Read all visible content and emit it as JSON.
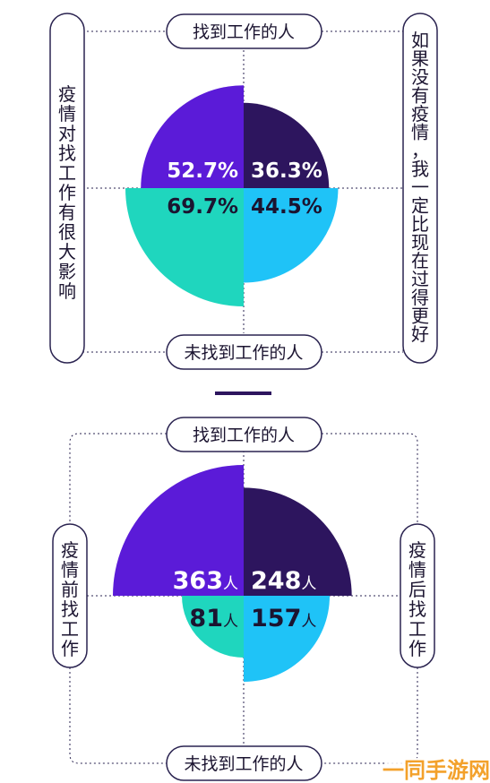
{
  "chart_data": [
    {
      "type": "pie",
      "labels": {
        "top": "找到工作的人",
        "bottom": "未找到工作的人",
        "left": "疫情对找工作有很大影响",
        "right": "如果没有疫情，我一定比现在过得更好"
      },
      "quadrants": [
        {
          "id": "top-left",
          "value": 52.7,
          "display": "52.7%",
          "color": "#5b1bd8"
        },
        {
          "id": "top-right",
          "value": 36.3,
          "display": "36.3%",
          "color": "#2d155e"
        },
        {
          "id": "bottom-left",
          "value": 69.7,
          "display": "69.7%",
          "color": "#1fd6be"
        },
        {
          "id": "bottom-right",
          "value": 44.5,
          "display": "44.5%",
          "color": "#1fc3f7"
        }
      ]
    },
    {
      "type": "pie",
      "labels": {
        "top": "找到工作的人",
        "bottom": "未找到工作的人",
        "left": "疫情前找工作",
        "right": "疫情后找工作"
      },
      "unit": "人",
      "quadrants": [
        {
          "id": "top-left",
          "value": 363,
          "display": "363",
          "color": "#5b1bd8"
        },
        {
          "id": "top-right",
          "value": 248,
          "display": "248",
          "color": "#2d155e"
        },
        {
          "id": "bottom-left",
          "value": 81,
          "display": "81",
          "color": "#1fd6be"
        },
        {
          "id": "bottom-right",
          "value": 157,
          "display": "157",
          "color": "#1fc3f7"
        }
      ]
    }
  ],
  "watermark": "一同手游网"
}
